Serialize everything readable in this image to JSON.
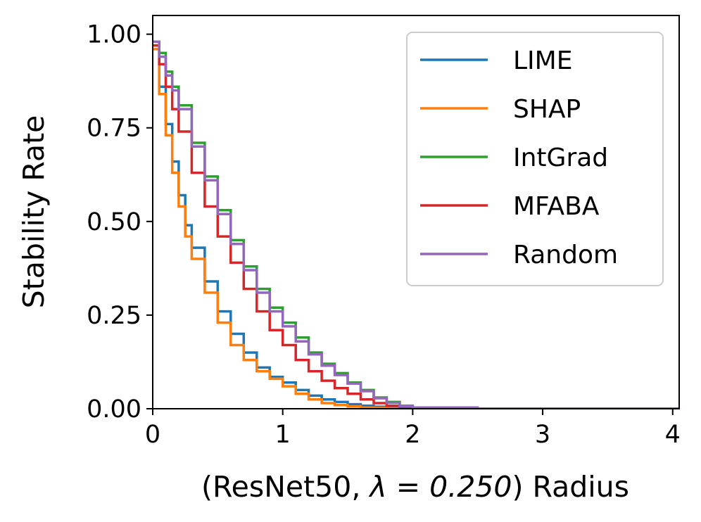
{
  "chart_data": {
    "type": "line",
    "step": true,
    "ylabel": "Stability Rate",
    "xlabel_prefix": "(ResNet50, ",
    "xlabel_lambda": "λ = 0.250",
    "xlabel_suffix": ") Radius",
    "xlim": [
      0,
      4.05
    ],
    "ylim": [
      0,
      1.05
    ],
    "xticks": [
      0,
      1,
      2,
      3,
      4
    ],
    "xtick_labels": [
      "0",
      "1",
      "2",
      "3",
      "4"
    ],
    "yticks": [
      0,
      0.25,
      0.5,
      0.75,
      1.0
    ],
    "ytick_labels": [
      "0.00",
      "0.25",
      "0.50",
      "0.75",
      "1.00"
    ],
    "legend_position": "upper right",
    "series": [
      {
        "name": "LIME",
        "color": "#1f77b4",
        "x": [
          0,
          0.05,
          0.1,
          0.15,
          0.2,
          0.25,
          0.3,
          0.4,
          0.5,
          0.6,
          0.7,
          0.8,
          0.9,
          1.0,
          1.1,
          1.2,
          1.3,
          1.4,
          1.5,
          1.6,
          1.7,
          1.8,
          2.0,
          2.5,
          3.0,
          3.5,
          4.0,
          4.05
        ],
        "y": [
          0.97,
          0.86,
          0.76,
          0.66,
          0.57,
          0.49,
          0.43,
          0.34,
          0.26,
          0.2,
          0.15,
          0.11,
          0.085,
          0.07,
          0.05,
          0.035,
          0.025,
          0.018,
          0.012,
          0.008,
          0.005,
          0.003,
          0.0,
          0.0,
          0.0,
          0.0,
          0.0,
          0.0
        ]
      },
      {
        "name": "SHAP",
        "color": "#ff7f0e",
        "x": [
          0,
          0.05,
          0.1,
          0.15,
          0.2,
          0.25,
          0.3,
          0.4,
          0.5,
          0.6,
          0.7,
          0.8,
          0.9,
          1.0,
          1.1,
          1.2,
          1.3,
          1.4,
          1.5,
          1.6,
          1.7,
          1.8,
          2.0,
          2.5,
          3.0,
          3.5,
          4.0,
          4.05
        ],
        "y": [
          0.96,
          0.84,
          0.73,
          0.63,
          0.54,
          0.46,
          0.4,
          0.31,
          0.23,
          0.17,
          0.13,
          0.1,
          0.08,
          0.06,
          0.04,
          0.025,
          0.015,
          0.01,
          0.006,
          0.003,
          0.002,
          0.001,
          0.0,
          0.0,
          0.0,
          0.0,
          0.0,
          0.0
        ]
      },
      {
        "name": "IntGrad",
        "color": "#2ca02c",
        "x": [
          0,
          0.05,
          0.1,
          0.15,
          0.2,
          0.3,
          0.4,
          0.5,
          0.6,
          0.7,
          0.8,
          0.9,
          1.0,
          1.1,
          1.2,
          1.3,
          1.4,
          1.5,
          1.6,
          1.7,
          1.8,
          1.9,
          2.0,
          2.5,
          3.0,
          3.5,
          4.0,
          4.05
        ],
        "y": [
          0.98,
          0.95,
          0.9,
          0.86,
          0.81,
          0.71,
          0.62,
          0.53,
          0.45,
          0.38,
          0.32,
          0.27,
          0.23,
          0.19,
          0.15,
          0.12,
          0.095,
          0.07,
          0.05,
          0.03,
          0.018,
          0.008,
          0.003,
          0.0,
          0.0,
          0.0,
          0.0,
          0.0
        ]
      },
      {
        "name": "MFABA",
        "color": "#d62728",
        "x": [
          0,
          0.05,
          0.1,
          0.15,
          0.2,
          0.3,
          0.4,
          0.5,
          0.6,
          0.7,
          0.8,
          0.9,
          1.0,
          1.1,
          1.2,
          1.3,
          1.4,
          1.5,
          1.6,
          1.7,
          1.8,
          1.9,
          2.0,
          2.5,
          3.0,
          3.5,
          4.0,
          4.05
        ],
        "y": [
          0.97,
          0.92,
          0.86,
          0.8,
          0.74,
          0.63,
          0.54,
          0.46,
          0.39,
          0.32,
          0.26,
          0.21,
          0.17,
          0.13,
          0.1,
          0.075,
          0.055,
          0.04,
          0.025,
          0.015,
          0.008,
          0.004,
          0.001,
          0.0,
          0.0,
          0.0,
          0.0,
          0.0
        ]
      },
      {
        "name": "Random",
        "color": "#9467bd",
        "x": [
          0,
          0.05,
          0.1,
          0.15,
          0.2,
          0.3,
          0.4,
          0.5,
          0.6,
          0.7,
          0.8,
          0.9,
          1.0,
          1.1,
          1.2,
          1.3,
          1.4,
          1.5,
          1.6,
          1.7,
          1.8,
          1.9,
          2.0,
          2.5,
          3.0,
          3.5,
          4.0,
          4.05
        ],
        "y": [
          0.98,
          0.94,
          0.89,
          0.85,
          0.8,
          0.7,
          0.61,
          0.52,
          0.44,
          0.37,
          0.31,
          0.26,
          0.22,
          0.18,
          0.145,
          0.115,
          0.09,
          0.067,
          0.047,
          0.028,
          0.016,
          0.007,
          0.003,
          0.0,
          0.0,
          0.0,
          0.0,
          0.0
        ]
      }
    ]
  }
}
